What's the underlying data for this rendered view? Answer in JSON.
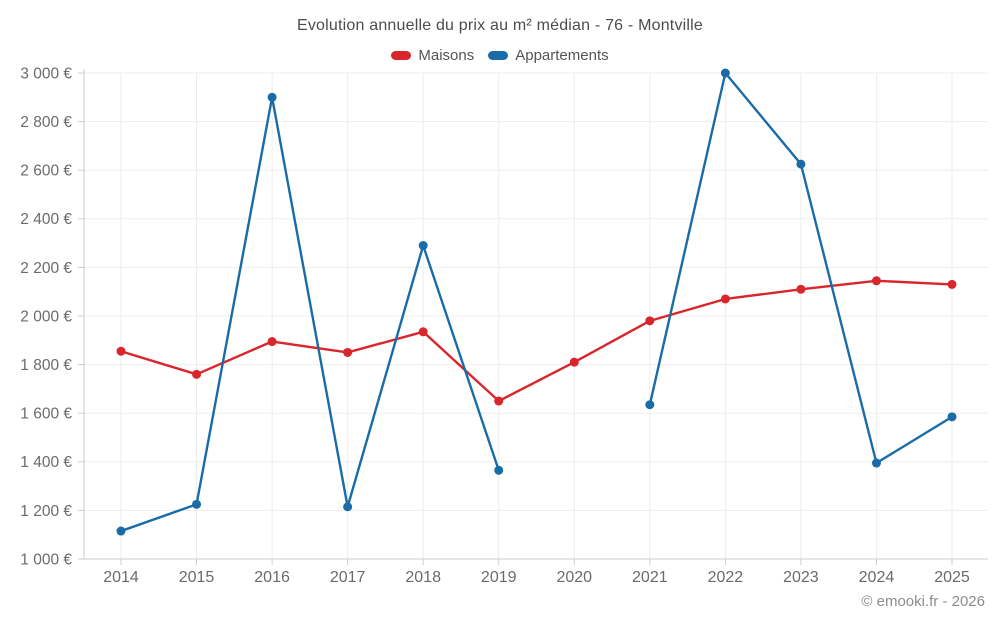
{
  "attribution": "© emooki.fr - 2026",
  "chart_data": {
    "type": "line",
    "title": "Evolution annuelle du prix au m² médian - 76 - Montville",
    "categories": [
      "2014",
      "2015",
      "2016",
      "2017",
      "2018",
      "2019",
      "2020",
      "2021",
      "2022",
      "2023",
      "2024",
      "2025"
    ],
    "series": [
      {
        "name": "Maisons",
        "color": "#d9262c",
        "values": [
          1855,
          1760,
          1895,
          1850,
          1935,
          1650,
          1810,
          1980,
          2070,
          2110,
          2145,
          2130
        ]
      },
      {
        "name": "Appartements",
        "color": "#1a6ca8",
        "values": [
          1115,
          1225,
          2900,
          1215,
          2290,
          1365,
          null,
          1635,
          3000,
          2625,
          1395,
          1585
        ]
      }
    ],
    "xlabel": "",
    "ylabel": "",
    "ylim": [
      1000,
      3000
    ],
    "y_tick_step": 200,
    "y_ticks": [
      {
        "value": 1000,
        "label": "1 000 €"
      },
      {
        "value": 1200,
        "label": "1 200 €"
      },
      {
        "value": 1400,
        "label": "1 400 €"
      },
      {
        "value": 1600,
        "label": "1 600 €"
      },
      {
        "value": 1800,
        "label": "1 800 €"
      },
      {
        "value": 2000,
        "label": "2 000 €"
      },
      {
        "value": 2200,
        "label": "2 200 €"
      },
      {
        "value": 2400,
        "label": "2 400 €"
      },
      {
        "value": 2600,
        "label": "2 600 €"
      },
      {
        "value": 2800,
        "label": "2 800 €"
      },
      {
        "value": 3000,
        "label": "3 000 €"
      }
    ],
    "grid": true,
    "legend_position": "top",
    "grid_color": "#ededed",
    "axis_color": "#cccccc",
    "text_color": "#6b6b6b"
  }
}
